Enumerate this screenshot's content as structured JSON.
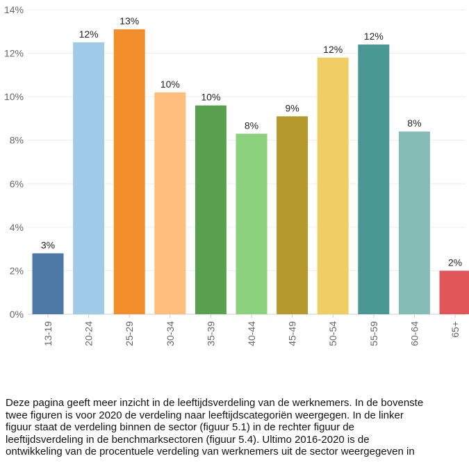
{
  "chart_data": {
    "type": "bar",
    "categories": [
      "13-19",
      "20-24",
      "25-29",
      "30-34",
      "35-39",
      "40-44",
      "45-49",
      "50-54",
      "55-59",
      "60-64",
      "65+"
    ],
    "values": [
      2.8,
      12.5,
      13.1,
      10.2,
      9.6,
      8.3,
      9.1,
      11.8,
      12.4,
      8.4,
      2.0
    ],
    "data_labels": [
      "3%",
      "12%",
      "13%",
      "10%",
      "10%",
      "8%",
      "9%",
      "12%",
      "12%",
      "8%",
      "2%"
    ],
    "colors": [
      "#4e79a7",
      "#a0cbe8",
      "#f28e2b",
      "#ffbe7d",
      "#59a14f",
      "#8cd17d",
      "#b6992d",
      "#f1ce63",
      "#499894",
      "#86bcb6",
      "#e15759"
    ],
    "ylim": [
      0,
      14
    ],
    "yticks": [
      0,
      2,
      4,
      6,
      8,
      10,
      12,
      14
    ],
    "ytick_labels": [
      "0%",
      "2%",
      "4%",
      "6%",
      "8%",
      "10%",
      "12%",
      "14%"
    ],
    "grid": true,
    "title": "",
    "xlabel": "",
    "ylabel": ""
  },
  "description": "Deze pagina geeft meer inzicht in de leeftijdsverdeling van de werknemers. In de bovenste\ntwee figuren is voor 2020 de verdeling naar leeftijdscategoriën weergegen. In de linker\nfiguur staat de verdeling binnen de sector (figuur 5.1) in de rechter figuur de\nleeftijdsverdeling in de benchmarksectoren (figuur 5.4). Ultimo 2016-2020 is de\nontwikkeling van de procentuele verdeling van werknemers uit de sector weergegeven in"
}
